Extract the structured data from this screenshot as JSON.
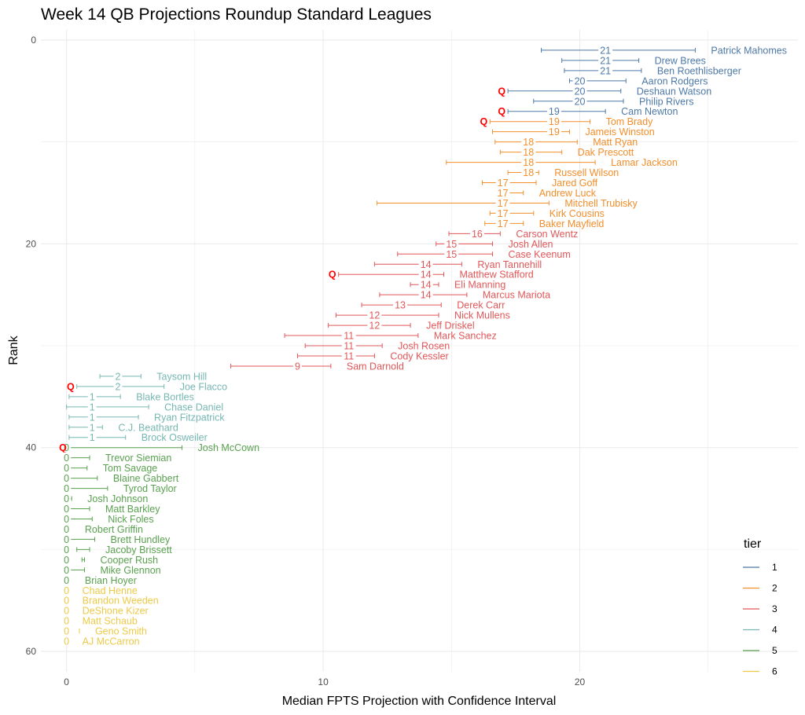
{
  "chart_data": {
    "type": "errorbar",
    "title": "Week 14 QB Projections Roundup Standard Leagues",
    "xlabel": "Median FPTS Projection with Confidence Interval",
    "ylabel": "Rank",
    "xlim": [
      -1,
      28.5
    ],
    "ylim": [
      -1,
      62
    ],
    "x_ticks": [
      0,
      10,
      20
    ],
    "y_ticks": [
      0,
      20,
      40,
      60
    ],
    "y_reversed": true,
    "legend": {
      "title": "tier",
      "position": "right",
      "entries": [
        {
          "tier": 1,
          "label": "1",
          "color": "#4e79a7"
        },
        {
          "tier": 2,
          "label": "2",
          "color": "#f28e2b"
        },
        {
          "tier": 3,
          "label": "3",
          "color": "#e15759"
        },
        {
          "tier": 4,
          "label": "4",
          "color": "#76b7b2"
        },
        {
          "tier": 5,
          "label": "5",
          "color": "#59a14f"
        },
        {
          "tier": 6,
          "label": "6",
          "color": "#edc948"
        }
      ]
    },
    "points": [
      {
        "name": "Patrick Mahomes",
        "rank": 1,
        "value": 21,
        "lo": 18.5,
        "hi": 24.5,
        "tier": 1,
        "q": false
      },
      {
        "name": "Drew Brees",
        "rank": 2,
        "value": 21,
        "lo": 19.3,
        "hi": 22.3,
        "tier": 1,
        "q": false
      },
      {
        "name": "Ben Roethlisberger",
        "rank": 3,
        "value": 21,
        "lo": 19.4,
        "hi": 22.4,
        "tier": 1,
        "q": false
      },
      {
        "name": "Aaron Rodgers",
        "rank": 4,
        "value": 20,
        "lo": 19.6,
        "hi": 21.8,
        "tier": 1,
        "q": false
      },
      {
        "name": "Deshaun Watson",
        "rank": 5,
        "value": 20,
        "lo": 17.2,
        "hi": 21.6,
        "tier": 1,
        "q": true
      },
      {
        "name": "Philip Rivers",
        "rank": 6,
        "value": 20,
        "lo": 18.2,
        "hi": 21.7,
        "tier": 1,
        "q": false
      },
      {
        "name": "Cam Newton",
        "rank": 7,
        "value": 19,
        "lo": 17.2,
        "hi": 21.0,
        "tier": 1,
        "q": true
      },
      {
        "name": "Tom Brady",
        "rank": 8,
        "value": 19,
        "lo": 16.5,
        "hi": 20.4,
        "tier": 2,
        "q": true
      },
      {
        "name": "Jameis Winston",
        "rank": 9,
        "value": 19,
        "lo": 16.6,
        "hi": 19.6,
        "tier": 2,
        "q": false
      },
      {
        "name": "Matt Ryan",
        "rank": 10,
        "value": 18,
        "lo": 16.7,
        "hi": 19.9,
        "tier": 2,
        "q": false
      },
      {
        "name": "Dak Prescott",
        "rank": 11,
        "value": 18,
        "lo": 16.9,
        "hi": 19.3,
        "tier": 2,
        "q": false
      },
      {
        "name": "Lamar Jackson",
        "rank": 12,
        "value": 18,
        "lo": 14.8,
        "hi": 20.6,
        "tier": 2,
        "q": false
      },
      {
        "name": "Russell Wilson",
        "rank": 13,
        "value": 18,
        "lo": 17.2,
        "hi": 18.4,
        "tier": 2,
        "q": false
      },
      {
        "name": "Jared Goff",
        "rank": 14,
        "value": 17,
        "lo": 16.2,
        "hi": 18.3,
        "tier": 2,
        "q": false
      },
      {
        "name": "Andrew Luck",
        "rank": 15,
        "value": 17,
        "lo": 17.0,
        "hi": 17.8,
        "tier": 2,
        "q": false
      },
      {
        "name": "Mitchell Trubisky",
        "rank": 16,
        "value": 17,
        "lo": 12.1,
        "hi": 18.8,
        "tier": 2,
        "q": false
      },
      {
        "name": "Kirk Cousins",
        "rank": 17,
        "value": 17,
        "lo": 16.5,
        "hi": 18.2,
        "tier": 2,
        "q": false
      },
      {
        "name": "Baker Mayfield",
        "rank": 18,
        "value": 17,
        "lo": 16.3,
        "hi": 17.8,
        "tier": 2,
        "q": false
      },
      {
        "name": "Carson Wentz",
        "rank": 19,
        "value": 16,
        "lo": 14.9,
        "hi": 16.9,
        "tier": 3,
        "q": false
      },
      {
        "name": "Josh Allen",
        "rank": 20,
        "value": 15,
        "lo": 14.4,
        "hi": 16.6,
        "tier": 3,
        "q": false
      },
      {
        "name": "Case Keenum",
        "rank": 21,
        "value": 15,
        "lo": 12.9,
        "hi": 16.6,
        "tier": 3,
        "q": false
      },
      {
        "name": "Ryan Tannehill",
        "rank": 22,
        "value": 14,
        "lo": 12.0,
        "hi": 15.4,
        "tier": 3,
        "q": false
      },
      {
        "name": "Matthew Stafford",
        "rank": 23,
        "value": 14,
        "lo": 10.6,
        "hi": 14.7,
        "tier": 3,
        "q": true
      },
      {
        "name": "Eli Manning",
        "rank": 24,
        "value": 14,
        "lo": 13.4,
        "hi": 14.5,
        "tier": 3,
        "q": false
      },
      {
        "name": "Marcus Mariota",
        "rank": 25,
        "value": 14,
        "lo": 12.2,
        "hi": 15.6,
        "tier": 3,
        "q": false
      },
      {
        "name": "Derek Carr",
        "rank": 26,
        "value": 13,
        "lo": 11.5,
        "hi": 14.6,
        "tier": 3,
        "q": false
      },
      {
        "name": "Nick Mullens",
        "rank": 27,
        "value": 12,
        "lo": 10.5,
        "hi": 14.5,
        "tier": 3,
        "q": false
      },
      {
        "name": "Jeff Driskel",
        "rank": 28,
        "value": 12,
        "lo": 10.2,
        "hi": 13.4,
        "tier": 3,
        "q": false
      },
      {
        "name": "Mark Sanchez",
        "rank": 29,
        "value": 11,
        "lo": 8.5,
        "hi": 13.7,
        "tier": 3,
        "q": false
      },
      {
        "name": "Josh Rosen",
        "rank": 30,
        "value": 11,
        "lo": 9.3,
        "hi": 12.3,
        "tier": 3,
        "q": false
      },
      {
        "name": "Cody Kessler",
        "rank": 31,
        "value": 11,
        "lo": 9.0,
        "hi": 12.0,
        "tier": 3,
        "q": false
      },
      {
        "name": "Sam Darnold",
        "rank": 32,
        "value": 9,
        "lo": 6.4,
        "hi": 10.3,
        "tier": 3,
        "q": false
      },
      {
        "name": "Taysom Hill",
        "rank": 33,
        "value": 2,
        "lo": 1.3,
        "hi": 2.9,
        "tier": 4,
        "q": false
      },
      {
        "name": "Joe Flacco",
        "rank": 34,
        "value": 2,
        "lo": 0.4,
        "hi": 3.8,
        "tier": 4,
        "q": true
      },
      {
        "name": "Blake Bortles",
        "rank": 35,
        "value": 1,
        "lo": 0.1,
        "hi": 2.1,
        "tier": 4,
        "q": false
      },
      {
        "name": "Chase Daniel",
        "rank": 36,
        "value": 1,
        "lo": 0.0,
        "hi": 3.2,
        "tier": 4,
        "q": false
      },
      {
        "name": "Ryan Fitzpatrick",
        "rank": 37,
        "value": 1,
        "lo": 0.1,
        "hi": 2.8,
        "tier": 4,
        "q": false
      },
      {
        "name": "C.J. Beathard",
        "rank": 38,
        "value": 1,
        "lo": 0.1,
        "hi": 1.4,
        "tier": 4,
        "q": false
      },
      {
        "name": "Brock Osweiler",
        "rank": 39,
        "value": 1,
        "lo": 0.1,
        "hi": 2.3,
        "tier": 4,
        "q": false
      },
      {
        "name": "Josh McCown",
        "rank": 40,
        "value": 0,
        "lo": 0.1,
        "hi": 4.5,
        "tier": 5,
        "q": true
      },
      {
        "name": "Trevor Siemian",
        "rank": 41,
        "value": 0,
        "lo": 0.1,
        "hi": 0.9,
        "tier": 5,
        "q": false
      },
      {
        "name": "Tom Savage",
        "rank": 42,
        "value": 0,
        "lo": 0.1,
        "hi": 0.8,
        "tier": 5,
        "q": false
      },
      {
        "name": "Blaine Gabbert",
        "rank": 43,
        "value": 0,
        "lo": 0.1,
        "hi": 1.2,
        "tier": 5,
        "q": false
      },
      {
        "name": "Tyrod Taylor",
        "rank": 44,
        "value": 0,
        "lo": 0.1,
        "hi": 1.6,
        "tier": 5,
        "q": false
      },
      {
        "name": "Josh Johnson",
        "rank": 45,
        "value": 0,
        "lo": 0.0,
        "hi": 0.2,
        "tier": 5,
        "q": false
      },
      {
        "name": "Matt Barkley",
        "rank": 46,
        "value": 0,
        "lo": 0.1,
        "hi": 0.9,
        "tier": 5,
        "q": false
      },
      {
        "name": "Nick Foles",
        "rank": 47,
        "value": 0,
        "lo": 0.1,
        "hi": 1.0,
        "tier": 5,
        "q": false
      },
      {
        "name": "Robert Griffin",
        "rank": 48,
        "value": 0,
        "lo": 0.0,
        "hi": 0.1,
        "tier": 5,
        "q": false
      },
      {
        "name": "Brett Hundley",
        "rank": 49,
        "value": 0,
        "lo": 0.1,
        "hi": 1.1,
        "tier": 5,
        "q": false
      },
      {
        "name": "Jacoby Brissett",
        "rank": 50,
        "value": 0,
        "lo": 0.4,
        "hi": 0.9,
        "tier": 5,
        "q": false
      },
      {
        "name": "Cooper Rush",
        "rank": 51,
        "value": 0,
        "lo": 0.6,
        "hi": 0.7,
        "tier": 5,
        "q": false
      },
      {
        "name": "Mike Glennon",
        "rank": 52,
        "value": 0,
        "lo": -0.1,
        "hi": 0.7,
        "tier": 5,
        "q": false
      },
      {
        "name": "Brian Hoyer",
        "rank": 53,
        "value": 0,
        "lo": 0.0,
        "hi": 0.1,
        "tier": 5,
        "q": false
      },
      {
        "name": "Chad Henne",
        "rank": 54,
        "value": 0,
        "lo": 0.0,
        "hi": 0.0,
        "tier": 6,
        "q": false
      },
      {
        "name": "Brandon Weeden",
        "rank": 55,
        "value": 0,
        "lo": 0.0,
        "hi": 0.0,
        "tier": 6,
        "q": false
      },
      {
        "name": "DeShone Kizer",
        "rank": 56,
        "value": 0,
        "lo": 0.0,
        "hi": 0.0,
        "tier": 6,
        "q": false
      },
      {
        "name": "Matt Schaub",
        "rank": 57,
        "value": 0,
        "lo": 0.0,
        "hi": 0.0,
        "tier": 6,
        "q": false
      },
      {
        "name": "Geno Smith",
        "rank": 58,
        "value": 0,
        "lo": 0.5,
        "hi": 0.5,
        "tier": 6,
        "q": false
      },
      {
        "name": "AJ McCarron",
        "rank": 59,
        "value": 0,
        "lo": 0.0,
        "hi": 0.0,
        "tier": 6,
        "q": false
      }
    ]
  },
  "q_marker": "Q"
}
